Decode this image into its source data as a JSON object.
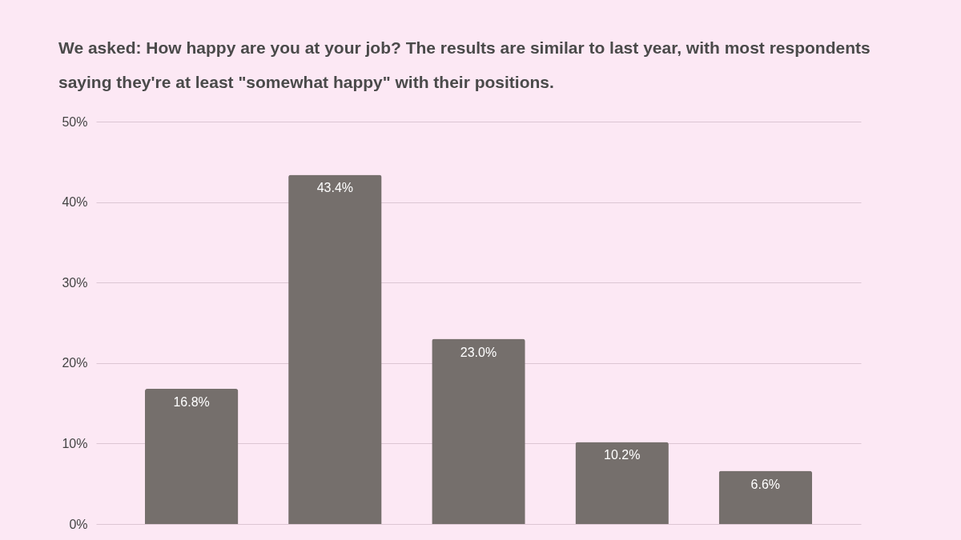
{
  "chart_data": {
    "type": "bar",
    "title": "We asked: How happy are you at your job? The results are similar to last year, with most respondents saying they're at least \"somewhat happy\" with their positions.",
    "categories": [
      null,
      null,
      null,
      null,
      null
    ],
    "values": [
      16.8,
      43.4,
      23.0,
      10.2,
      6.6
    ],
    "value_labels": [
      "16.8%",
      "43.4%",
      "23.0%",
      "10.2%",
      "6.6%"
    ],
    "color": "#756f6c",
    "ylim": [
      0,
      50
    ],
    "yticks": [
      {
        "value": 0,
        "label": "0%"
      },
      {
        "value": 10,
        "label": "10%"
      },
      {
        "value": 20,
        "label": "20%"
      },
      {
        "value": 30,
        "label": "30%"
      },
      {
        "value": 40,
        "label": "40%"
      },
      {
        "value": 50,
        "label": "50%"
      }
    ],
    "grid": "y",
    "tick_labels": "y"
  }
}
